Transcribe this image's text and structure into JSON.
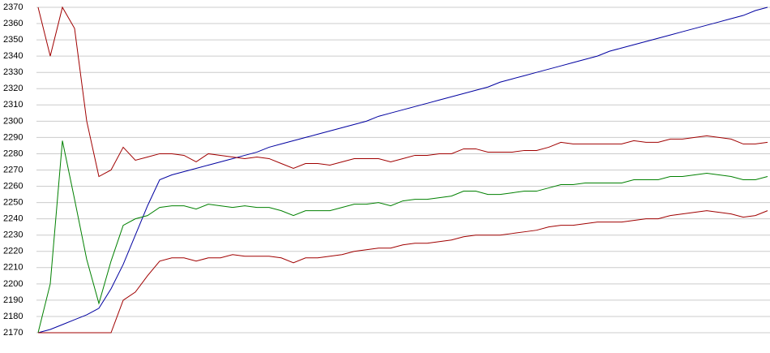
{
  "chart_data": {
    "type": "line",
    "ylim": [
      2170,
      2370
    ],
    "yticks": [
      2170,
      2180,
      2190,
      2200,
      2210,
      2220,
      2230,
      2240,
      2250,
      2260,
      2270,
      2280,
      2290,
      2300,
      2310,
      2320,
      2330,
      2340,
      2350,
      2360,
      2370
    ],
    "grid": true,
    "series": [
      {
        "color": "#0000a0",
        "values": [
          2170,
          2172,
          2175,
          2178,
          2181,
          2185,
          2197,
          2212,
          2230,
          2248,
          2264,
          2267,
          2269,
          2271,
          2273,
          2275,
          2277,
          2279,
          2281,
          2284,
          2286,
          2288,
          2290,
          2292,
          2294,
          2296,
          2298,
          2300,
          2303,
          2305,
          2307,
          2309,
          2311,
          2313,
          2315,
          2317,
          2319,
          2321,
          2324,
          2326,
          2328,
          2330,
          2332,
          2334,
          2336,
          2338,
          2340,
          2343,
          2345,
          2347,
          2349,
          2351,
          2353,
          2355,
          2357,
          2359,
          2361,
          2363,
          2365,
          2368,
          2370
        ]
      },
      {
        "color": "#a00000",
        "values": [
          2370,
          2340,
          2370,
          2357,
          2300,
          2266,
          2270,
          2284,
          2276,
          2278,
          2280,
          2280,
          2279,
          2275,
          2280,
          2279,
          2278,
          2277,
          2278,
          2277,
          2274,
          2271,
          2274,
          2274,
          2273,
          2275,
          2277,
          2277,
          2277,
          2275,
          2277,
          2279,
          2279,
          2280,
          2280,
          2283,
          2283,
          2281,
          2281,
          2281,
          2282,
          2282,
          2284,
          2287,
          2286,
          2286,
          2286,
          2286,
          2286,
          2288,
          2287,
          2287,
          2289,
          2289,
          2290,
          2291,
          2290,
          2289,
          2286,
          2286,
          2287
        ]
      },
      {
        "color": "#008000",
        "values": [
          2170,
          2200,
          2288,
          2252,
          2215,
          2188,
          2214,
          2236,
          2240,
          2242,
          2247,
          2248,
          2248,
          2246,
          2249,
          2248,
          2247,
          2248,
          2247,
          2247,
          2245,
          2242,
          2245,
          2245,
          2245,
          2247,
          2249,
          2249,
          2250,
          2248,
          2251,
          2252,
          2252,
          2253,
          2254,
          2257,
          2257,
          2255,
          2255,
          2256,
          2257,
          2257,
          2259,
          2261,
          2261,
          2262,
          2262,
          2262,
          2262,
          2264,
          2264,
          2264,
          2266,
          2266,
          2267,
          2268,
          2267,
          2266,
          2264,
          2264,
          2266
        ]
      },
      {
        "color": "#a00000",
        "values": [
          2170,
          2170,
          2170,
          2170,
          2170,
          2170,
          2170,
          2190,
          2195,
          2205,
          2214,
          2216,
          2216,
          2214,
          2216,
          2216,
          2218,
          2217,
          2217,
          2217,
          2216,
          2213,
          2216,
          2216,
          2217,
          2218,
          2220,
          2221,
          2222,
          2222,
          2224,
          2225,
          2225,
          2226,
          2227,
          2229,
          2230,
          2230,
          2230,
          2231,
          2232,
          2233,
          2235,
          2236,
          2236,
          2237,
          2238,
          2238,
          2238,
          2239,
          2240,
          2240,
          2242,
          2243,
          2244,
          2245,
          2244,
          2243,
          2241,
          2242,
          2245
        ]
      }
    ]
  }
}
